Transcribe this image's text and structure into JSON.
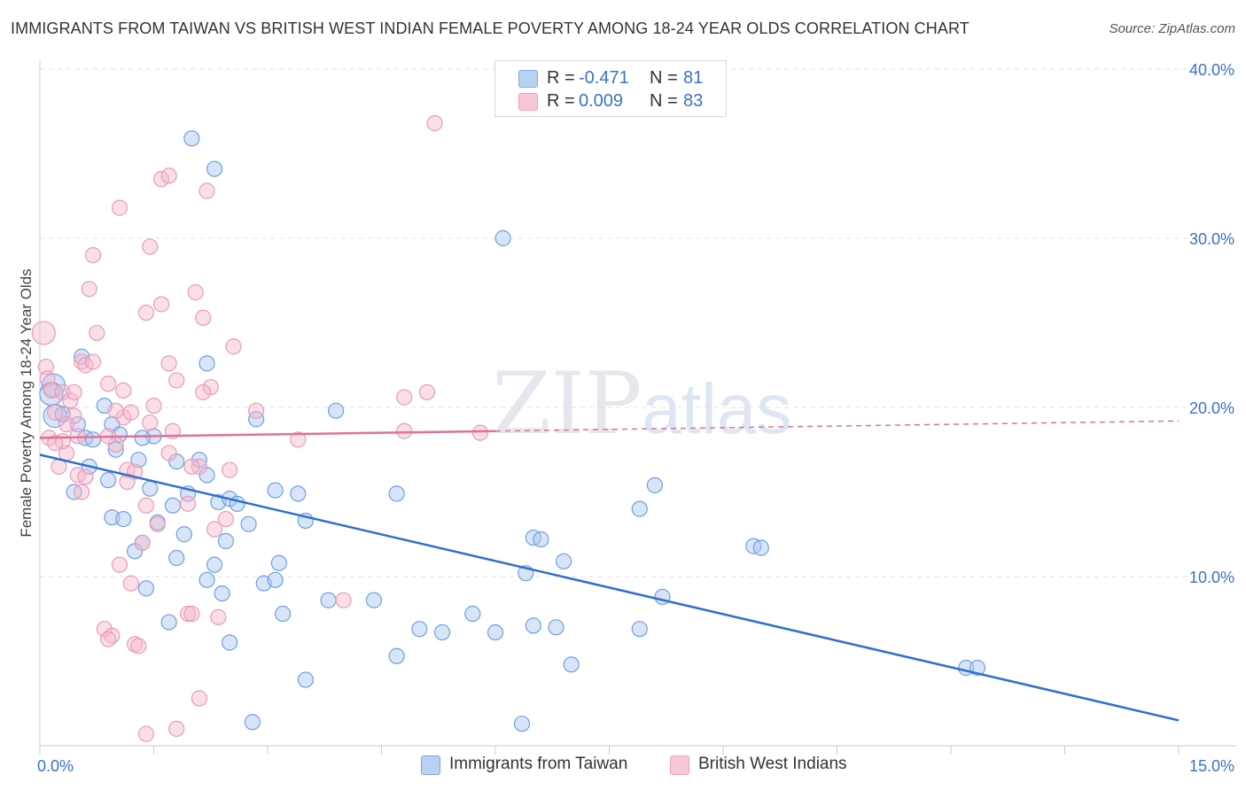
{
  "header": {
    "title": "IMMIGRANTS FROM TAIWAN VS BRITISH WEST INDIAN FEMALE POVERTY AMONG 18-24 YEAR OLDS CORRELATION CHART",
    "source": "Source: ZipAtlas.com"
  },
  "watermark": {
    "zip": "ZIP",
    "atlas": "atlas"
  },
  "legend": {
    "rows": [
      {
        "r_label": "R =",
        "r_value": "-0.471",
        "n_label": "N =",
        "n_value": "81",
        "color": "#a9c6ef"
      },
      {
        "r_label": "R =",
        "r_value": "0.009",
        "n_label": "N =",
        "n_value": "83",
        "color": "#f5b8cc"
      }
    ]
  },
  "bottom_legend": [
    {
      "label": "Immigrants from Taiwan",
      "color": "#a9c6ef"
    },
    {
      "label": "British West Indians",
      "color": "#f5b8cc"
    }
  ],
  "chart_data": {
    "type": "scatter",
    "title": "IMMIGRANTS FROM TAIWAN VS BRITISH WEST INDIAN FEMALE POVERTY AMONG 18-24 YEAR OLDS CORRELATION CHART",
    "xlabel": "",
    "ylabel": "Female Poverty Among 18-24 Year Olds",
    "xlim": [
      0,
      15
    ],
    "ylim": [
      0,
      40
    ],
    "x_tick_labels": [
      {
        "value": 0,
        "label": "0.0%"
      },
      {
        "value": 15,
        "label": "15.0%"
      }
    ],
    "y_tick_labels": [
      {
        "value": 10,
        "label": "10.0%"
      },
      {
        "value": 20,
        "label": "20.0%"
      },
      {
        "value": 30,
        "label": "30.0%"
      },
      {
        "value": 40,
        "label": "40.0%"
      }
    ],
    "grid": true,
    "legend_position": "top-center",
    "series": [
      {
        "name": "Immigrants from Taiwan",
        "color": "#6fa0e0",
        "fill": "#a9c6ef",
        "line_color": "#2e6fd0",
        "trend": {
          "x0": 0,
          "y0": 17.2,
          "x1": 15,
          "y1": 1.5,
          "dashed_from": null
        },
        "points": [
          [
            0.18,
            21.3
          ],
          [
            0.15,
            20.8
          ],
          [
            0.2,
            19.5
          ],
          [
            0.3,
            19.6
          ],
          [
            0.55,
            23.0
          ],
          [
            0.5,
            19.0
          ],
          [
            0.6,
            18.2
          ],
          [
            0.7,
            18.1
          ],
          [
            0.65,
            16.5
          ],
          [
            0.45,
            15.0
          ],
          [
            0.85,
            20.1
          ],
          [
            0.95,
            19.0
          ],
          [
            1.05,
            18.4
          ],
          [
            1.0,
            17.5
          ],
          [
            1.5,
            18.3
          ],
          [
            1.35,
            18.2
          ],
          [
            1.3,
            16.9
          ],
          [
            1.8,
            16.8
          ],
          [
            2.1,
            16.9
          ],
          [
            2.2,
            16.0
          ],
          [
            1.45,
            15.2
          ],
          [
            0.9,
            15.7
          ],
          [
            0.95,
            13.5
          ],
          [
            1.1,
            13.4
          ],
          [
            1.55,
            13.2
          ],
          [
            1.75,
            14.2
          ],
          [
            1.95,
            14.9
          ],
          [
            2.35,
            14.4
          ],
          [
            2.5,
            14.6
          ],
          [
            2.6,
            14.3
          ],
          [
            1.25,
            11.5
          ],
          [
            1.35,
            12.0
          ],
          [
            1.9,
            12.5
          ],
          [
            2.45,
            12.1
          ],
          [
            2.75,
            13.1
          ],
          [
            1.8,
            11.1
          ],
          [
            2.3,
            10.7
          ],
          [
            2.2,
            9.8
          ],
          [
            1.4,
            9.3
          ],
          [
            2.4,
            9.0
          ],
          [
            3.1,
            15.1
          ],
          [
            3.4,
            14.9
          ],
          [
            3.5,
            13.3
          ],
          [
            3.15,
            10.8
          ],
          [
            2.95,
            9.6
          ],
          [
            3.1,
            9.8
          ],
          [
            3.2,
            7.8
          ],
          [
            3.8,
            8.6
          ],
          [
            4.4,
            8.6
          ],
          [
            4.7,
            14.9
          ],
          [
            2.2,
            22.6
          ],
          [
            2.85,
            19.3
          ],
          [
            3.9,
            19.8
          ],
          [
            2.0,
            35.9
          ],
          [
            2.3,
            34.1
          ],
          [
            6.1,
            30.0
          ],
          [
            1.7,
            7.3
          ],
          [
            2.5,
            6.1
          ],
          [
            3.5,
            3.9
          ],
          [
            2.8,
            1.4
          ],
          [
            4.7,
            5.3
          ],
          [
            5.0,
            6.9
          ],
          [
            5.3,
            6.7
          ],
          [
            5.7,
            7.8
          ],
          [
            6.0,
            6.7
          ],
          [
            6.4,
            10.2
          ],
          [
            6.5,
            7.1
          ],
          [
            6.8,
            7.0
          ],
          [
            6.5,
            12.3
          ],
          [
            6.6,
            12.2
          ],
          [
            6.9,
            10.9
          ],
          [
            7.0,
            4.8
          ],
          [
            7.9,
            14.0
          ],
          [
            8.1,
            15.4
          ],
          [
            7.9,
            6.9
          ],
          [
            8.2,
            8.8
          ],
          [
            9.4,
            11.8
          ],
          [
            9.5,
            11.7
          ],
          [
            12.2,
            4.6
          ],
          [
            12.35,
            4.6
          ],
          [
            6.35,
            1.3
          ]
        ]
      },
      {
        "name": "British West Indians",
        "color": "#ea9bb8",
        "fill": "#f5b8cc",
        "line_color": "#e0709a",
        "trend": {
          "x0": 0,
          "y0": 18.2,
          "x1": 15,
          "y1": 19.2,
          "dashed_from": 6.0
        },
        "points": [
          [
            0.05,
            24.4
          ],
          [
            0.08,
            22.4
          ],
          [
            0.1,
            21.7
          ],
          [
            0.15,
            21.0
          ],
          [
            0.2,
            19.7
          ],
          [
            0.12,
            18.2
          ],
          [
            0.3,
            20.9
          ],
          [
            0.4,
            20.4
          ],
          [
            0.45,
            19.5
          ],
          [
            0.55,
            22.7
          ],
          [
            0.6,
            22.5
          ],
          [
            0.7,
            22.7
          ],
          [
            0.75,
            24.4
          ],
          [
            0.9,
            21.4
          ],
          [
            1.1,
            21.0
          ],
          [
            0.5,
            18.3
          ],
          [
            0.35,
            17.3
          ],
          [
            0.25,
            16.5
          ],
          [
            0.5,
            16.0
          ],
          [
            0.55,
            15.0
          ],
          [
            1.0,
            17.8
          ],
          [
            1.15,
            16.3
          ],
          [
            1.25,
            16.2
          ],
          [
            1.1,
            19.4
          ],
          [
            1.2,
            19.7
          ],
          [
            1.45,
            19.1
          ],
          [
            1.5,
            20.1
          ],
          [
            1.7,
            22.6
          ],
          [
            1.8,
            21.6
          ],
          [
            1.7,
            17.3
          ],
          [
            1.4,
            14.2
          ],
          [
            1.55,
            13.1
          ],
          [
            1.35,
            12.0
          ],
          [
            1.05,
            10.7
          ],
          [
            1.2,
            9.6
          ],
          [
            0.85,
            6.9
          ],
          [
            0.95,
            6.5
          ],
          [
            0.9,
            6.3
          ],
          [
            1.25,
            6.0
          ],
          [
            1.3,
            5.9
          ],
          [
            1.95,
            14.3
          ],
          [
            2.3,
            12.8
          ],
          [
            2.45,
            13.4
          ],
          [
            1.95,
            7.8
          ],
          [
            2.0,
            7.8
          ],
          [
            2.35,
            7.6
          ],
          [
            2.1,
            2.8
          ],
          [
            1.4,
            0.7
          ],
          [
            1.8,
            1.0
          ],
          [
            2.1,
            16.5
          ],
          [
            2.5,
            16.3
          ],
          [
            2.25,
            21.2
          ],
          [
            2.15,
            20.9
          ],
          [
            2.55,
            23.6
          ],
          [
            2.85,
            19.8
          ],
          [
            3.4,
            18.1
          ],
          [
            2.15,
            25.3
          ],
          [
            2.05,
            26.8
          ],
          [
            1.6,
            26.1
          ],
          [
            1.4,
            25.6
          ],
          [
            1.45,
            29.5
          ],
          [
            0.7,
            29.0
          ],
          [
            0.65,
            27.0
          ],
          [
            1.05,
            31.8
          ],
          [
            1.6,
            33.5
          ],
          [
            1.7,
            33.7
          ],
          [
            2.2,
            32.8
          ],
          [
            5.2,
            36.8
          ],
          [
            4.8,
            20.6
          ],
          [
            5.1,
            20.9
          ],
          [
            4.8,
            18.6
          ],
          [
            5.8,
            18.5
          ],
          [
            4.0,
            8.6
          ],
          [
            2.0,
            16.5
          ],
          [
            1.75,
            18.6
          ],
          [
            0.35,
            19.0
          ],
          [
            0.45,
            20.9
          ],
          [
            0.3,
            18.0
          ],
          [
            0.9,
            18.3
          ],
          [
            1.15,
            15.6
          ],
          [
            0.6,
            15.9
          ],
          [
            0.2,
            17.9
          ],
          [
            1.0,
            19.8
          ]
        ]
      }
    ]
  }
}
